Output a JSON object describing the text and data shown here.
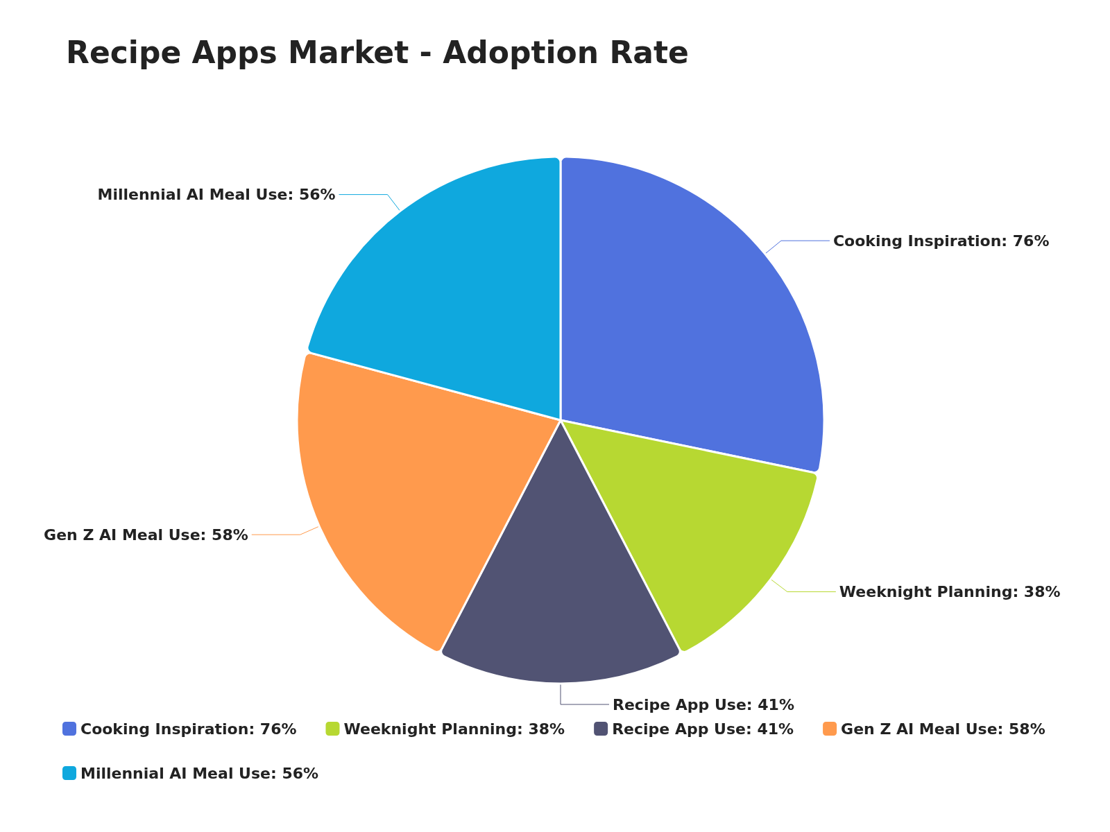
{
  "chart_data": {
    "type": "pie",
    "title": "Recipe Apps Market - Adoption Rate",
    "categories": [
      "Cooking Inspiration",
      "Weeknight Planning",
      "Recipe App Use",
      "Gen Z AI Meal Use",
      "Millennial AI Meal Use"
    ],
    "values": [
      76,
      38,
      41,
      58,
      56
    ],
    "value_labels": [
      "76%",
      "38%",
      "41%",
      "58%",
      "56%"
    ],
    "colors": [
      "#5072de",
      "#b7d832",
      "#515373",
      "#ff9a4d",
      "#0fa8de"
    ],
    "legend": "bottom"
  }
}
